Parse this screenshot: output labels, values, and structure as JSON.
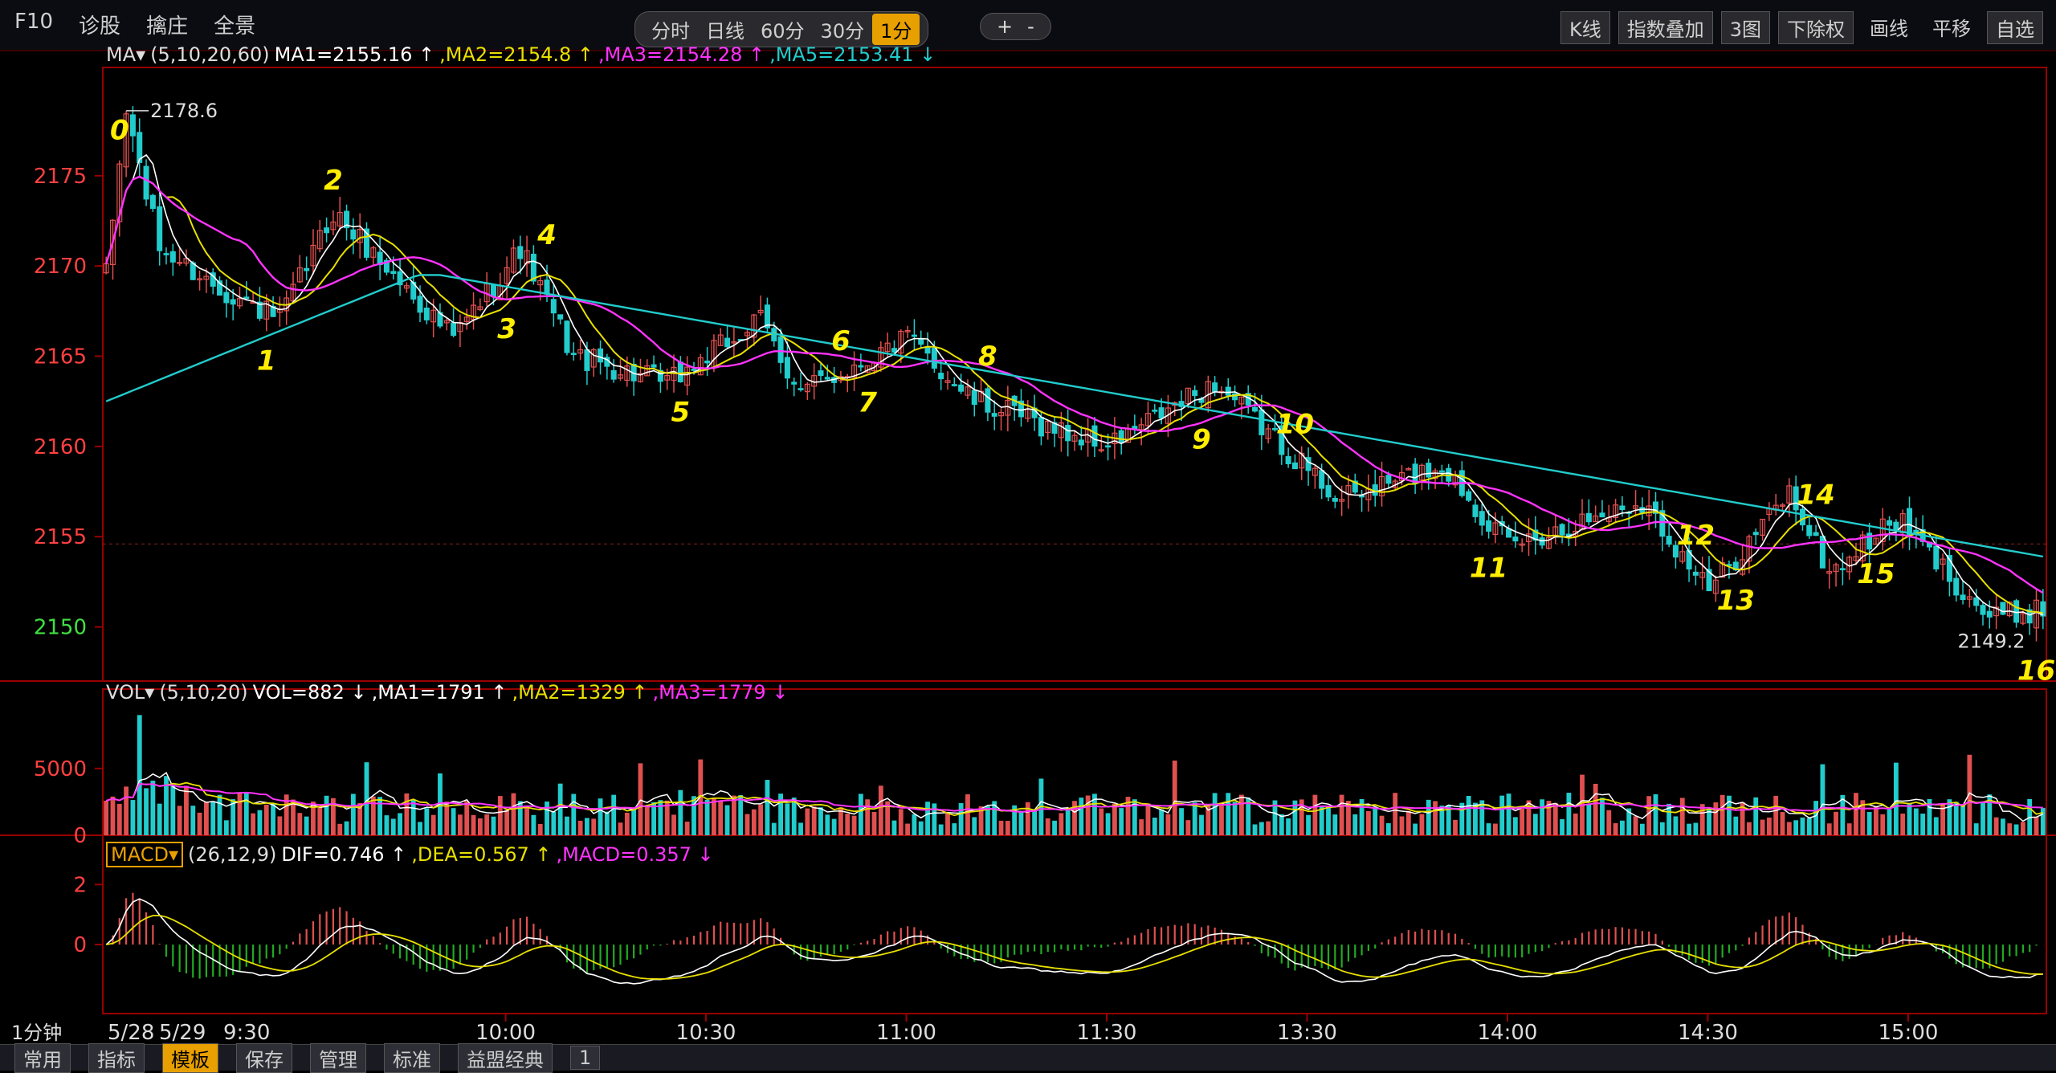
{
  "toolbar": {
    "left": [
      "F10",
      "诊股",
      "擒庄",
      "全景"
    ],
    "periods": [
      "分时",
      "日线",
      "60分",
      "30分",
      "1分"
    ],
    "active_period": "1分",
    "zoom": [
      "+",
      "-"
    ],
    "right": [
      "K线",
      "指数叠加",
      "3图",
      "下除权",
      "画线",
      "平移",
      "自选"
    ]
  },
  "legend_ma": {
    "label": "MA",
    "params": "(5,10,20,60)",
    "items": [
      {
        "text": "MA1=2155.16",
        "arrow": "↑",
        "color": "#ffffff"
      },
      {
        "text": "MA2=2154.8",
        "arrow": "↑",
        "color": "#e8e000"
      },
      {
        "text": "MA3=2154.28",
        "arrow": "↑",
        "color": "#ff33ff"
      },
      {
        "text": "MA5=2153.41",
        "arrow": "↓",
        "color": "#22cccc"
      }
    ]
  },
  "legend_vol": {
    "label": "VOL",
    "params": "(5,10,20)",
    "items": [
      {
        "text": "VOL=882",
        "arrow": "↓",
        "color": "#ffffff"
      },
      {
        "text": "MA1=1791",
        "arrow": "↑",
        "color": "#ffffff"
      },
      {
        "text": "MA2=1329",
        "arrow": "↑",
        "color": "#e8e000"
      },
      {
        "text": "MA3=1779",
        "arrow": "↓",
        "color": "#ff33ff"
      }
    ]
  },
  "legend_macd": {
    "label": "MACD",
    "params": "(26,12,9)",
    "items": [
      {
        "text": "DIF=0.746",
        "arrow": "↑",
        "color": "#ffffff"
      },
      {
        "text": "DEA=0.567",
        "arrow": "↑",
        "color": "#e8e000"
      },
      {
        "text": "MACD=0.357",
        "arrow": "↓",
        "color": "#ff33ff"
      }
    ]
  },
  "bottom": {
    "items": [
      "常用",
      "指标",
      "模板",
      "保存",
      "管理",
      "标准",
      "益盟经典",
      "1"
    ],
    "active": "模板"
  },
  "chart_data": {
    "type": "candlestick",
    "period_label": "1分钟",
    "price_ticks": [
      2175,
      2170,
      2165,
      2160,
      2155,
      2150
    ],
    "price_range": [
      2147,
      2181
    ],
    "high_label": "2178.6",
    "low_label": "2149.2",
    "vol_ticks": [
      5000,
      0
    ],
    "vol_range": [
      0,
      9500
    ],
    "macd_ticks": [
      2,
      0
    ],
    "macd_range": [
      -2.3,
      3.0
    ],
    "x_labels": [
      "5/28",
      "5/29",
      "9:30",
      "10:00",
      "10:30",
      "11:00",
      "11:30",
      "13:30",
      "14:00",
      "14:30",
      "15:00"
    ],
    "price_anchors": [
      [
        0,
        2169.5
      ],
      [
        3,
        2178.6
      ],
      [
        8,
        2171
      ],
      [
        16,
        2169
      ],
      [
        26,
        2167
      ],
      [
        34,
        2173
      ],
      [
        52,
        2166
      ],
      [
        62,
        2171
      ],
      [
        70,
        2165
      ],
      [
        84,
        2163.5
      ],
      [
        98,
        2167
      ],
      [
        104,
        2163
      ],
      [
        120,
        2166
      ],
      [
        130,
        2162.5
      ],
      [
        150,
        2160
      ],
      [
        166,
        2163.5
      ],
      [
        185,
        2157
      ],
      [
        200,
        2159
      ],
      [
        210,
        2154.5
      ],
      [
        230,
        2157
      ],
      [
        240,
        2152
      ],
      [
        252,
        2157.5
      ],
      [
        258,
        2153
      ],
      [
        268,
        2156
      ],
      [
        282,
        2150.5
      ],
      [
        290,
        2151
      ]
    ],
    "wave_annotations": [
      {
        "label": "0",
        "bar": 2
      },
      {
        "label": "1",
        "bar": 24
      },
      {
        "label": "2",
        "bar": 34
      },
      {
        "label": "3",
        "bar": 60
      },
      {
        "label": "4",
        "bar": 66
      },
      {
        "label": "5",
        "bar": 86
      },
      {
        "label": "6",
        "bar": 110
      },
      {
        "label": "7",
        "bar": 114
      },
      {
        "label": "8",
        "bar": 132
      },
      {
        "label": "9",
        "bar": 164
      },
      {
        "label": "10",
        "bar": 178
      },
      {
        "label": "11",
        "bar": 207
      },
      {
        "label": "12",
        "bar": 238
      },
      {
        "label": "13",
        "bar": 244
      },
      {
        "label": "14",
        "bar": 256
      },
      {
        "label": "15",
        "bar": 265
      },
      {
        "label": "16",
        "bar": 289
      }
    ],
    "colors": {
      "up": "#e05050",
      "down": "#22cccc",
      "ma5": "#ffffff",
      "ma10": "#e8e000",
      "ma20": "#ff33ff",
      "ma60": "#22cccc",
      "axis": "#990000",
      "annot": "#ffee00"
    }
  }
}
